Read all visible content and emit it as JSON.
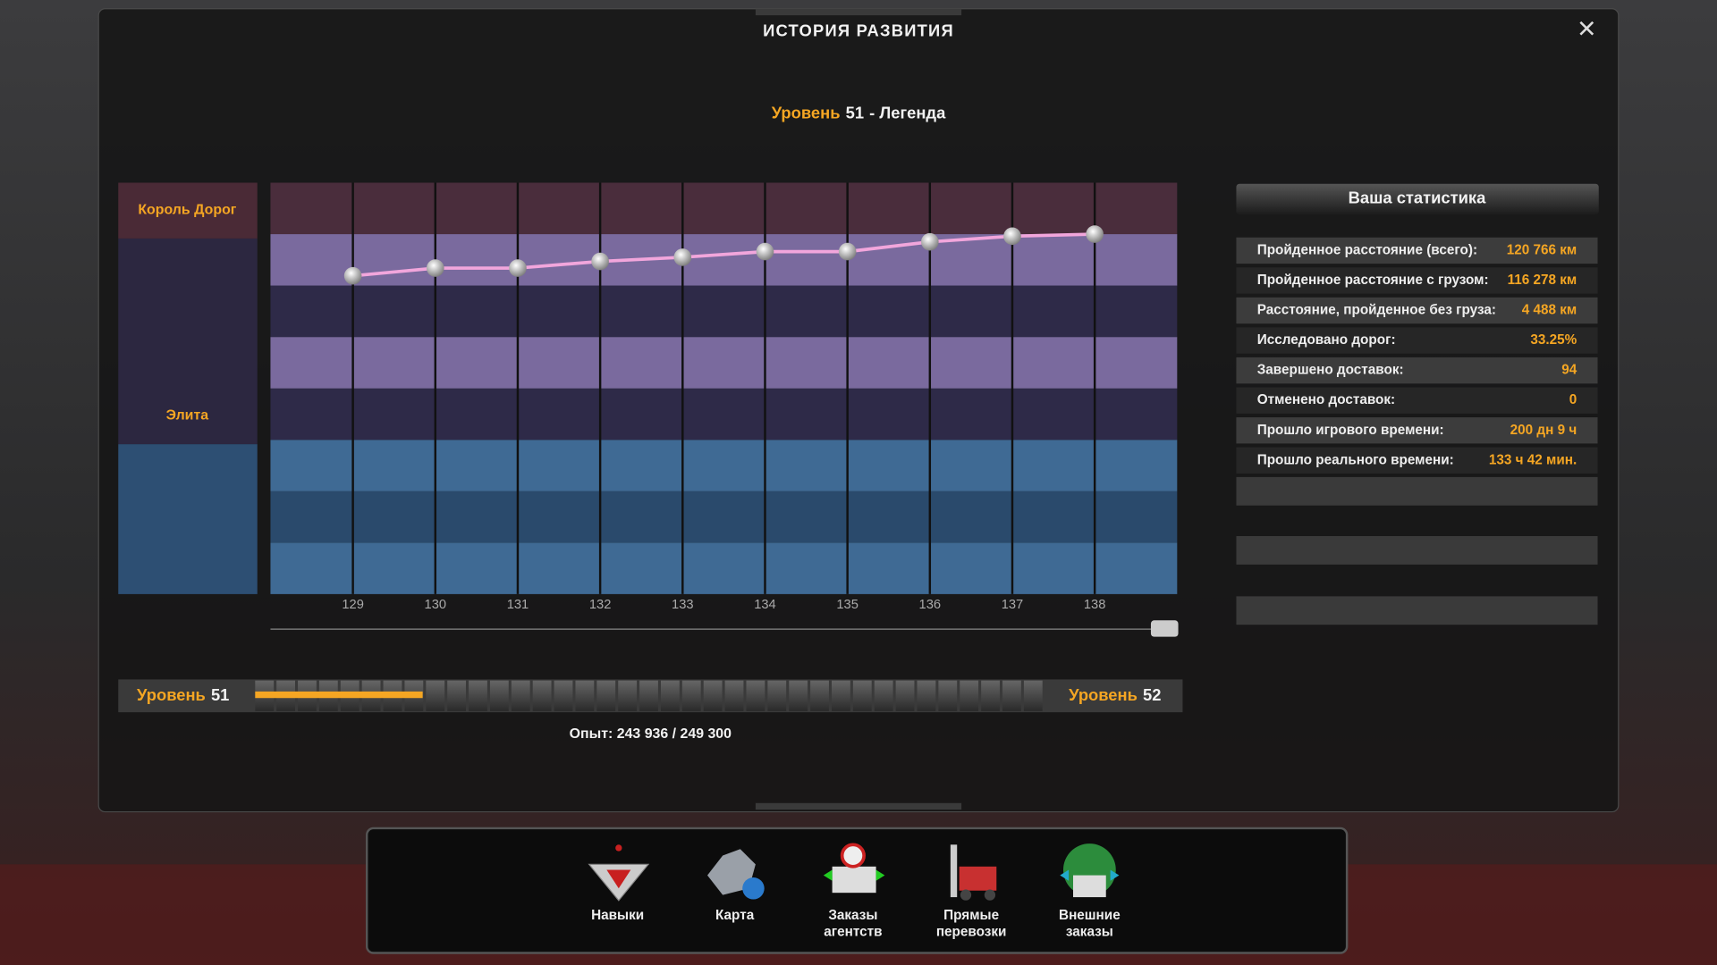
{
  "header": {
    "title": "ИСТОРИЯ РАЗВИТИЯ",
    "close": "✕"
  },
  "level": {
    "word": "Уровень",
    "number": "51",
    "rank": "- Легенда"
  },
  "chart_data": {
    "type": "line",
    "bands": [
      "Король Дорог",
      "Элита"
    ],
    "x": [
      129,
      130,
      131,
      132,
      133,
      134,
      135,
      136,
      137,
      138
    ],
    "xlim": [
      128,
      139
    ],
    "xticks": [
      129,
      130,
      131,
      132,
      133,
      134,
      135,
      136,
      137,
      138
    ],
    "ylim": [
      0,
      8
    ],
    "series": [
      {
        "color": "#f2a6dc",
        "values": [
          6.19,
          6.34,
          6.34,
          6.47,
          6.55,
          6.66,
          6.66,
          6.85,
          6.96,
          7.0
        ]
      }
    ]
  },
  "stats": {
    "title": "Ваша статистика",
    "rows": [
      [
        "Пройденное расстояние (всего):",
        "120 766 км"
      ],
      [
        "Пройденное расстояние с грузом:",
        "116 278 км"
      ],
      [
        "Расстояние, пройденное без груза:",
        "4 488 км"
      ],
      [
        "Исследовано дорог:",
        "33.25%"
      ],
      [
        "Завершено доставок:",
        "94"
      ],
      [
        "Отменено доставок:",
        "0"
      ],
      [
        "Прошло игрового времени:",
        "200 дн 9 ч"
      ],
      [
        "Прошло реального времени:",
        "133 ч 42 мин."
      ]
    ]
  },
  "xp": {
    "from": {
      "word": "Уровень",
      "number": "51"
    },
    "to": {
      "word": "Уровень",
      "number": "52"
    },
    "text": "Опыт: 243 936 / 249 300"
  },
  "nav": [
    {
      "label": [
        "Навыки"
      ]
    },
    {
      "label": [
        "Карта"
      ]
    },
    {
      "label": [
        "Заказы",
        "агентств"
      ]
    },
    {
      "label": [
        "Прямые",
        "перевозки"
      ]
    },
    {
      "label": [
        "Внешние",
        "заказы"
      ]
    }
  ]
}
